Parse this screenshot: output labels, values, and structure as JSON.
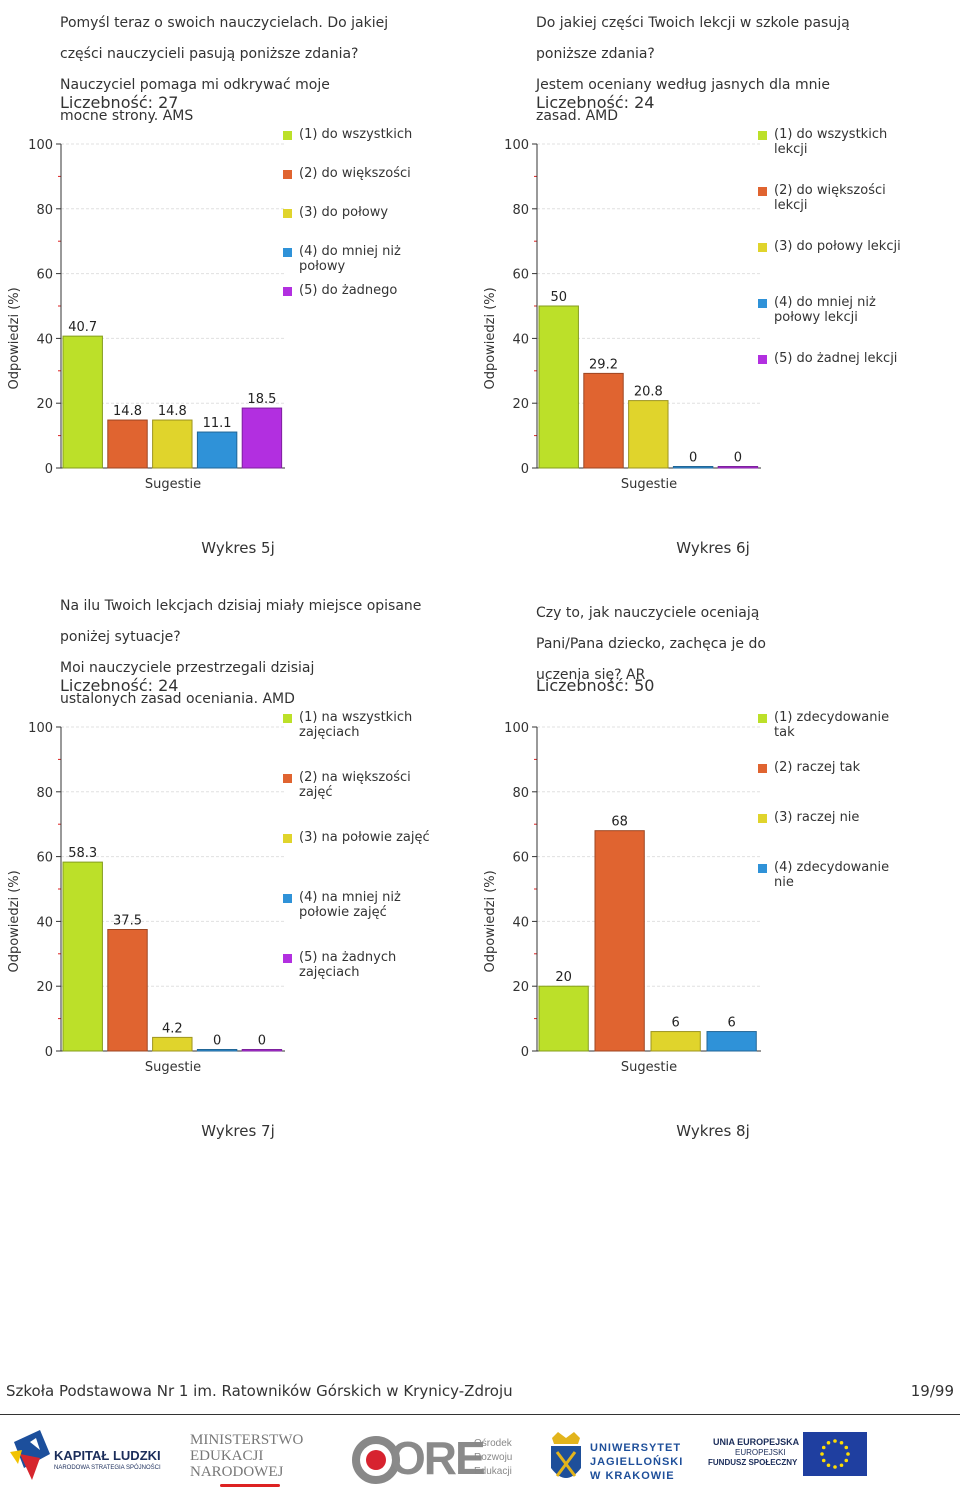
{
  "page": {
    "school": "Szkoła Podstawowa Nr 1 im. Ratowników Górskich w Krynicy-Zdroju",
    "page_number": "19/99"
  },
  "colors": {
    "c1": "#bce029",
    "c2": "#e06430",
    "c3": "#e0d42c",
    "c4": "#2f92d8",
    "c5": "#b22fe0"
  },
  "chart_data": [
    {
      "type": "bar",
      "title": "Pomyśl teraz o swoich nauczycielach. Do jakiej części nauczycieli pasują poniższe zdania?\nNauczyciel pomaga mi odkrywać moje mocne strony. AMS",
      "title_lines": [
        "Pomyśl teraz o swoich nauczycielach. Do jakiej",
        "części nauczycieli pasują poniższe zdania?",
        "Nauczyciel pomaga mi odkrywać moje",
        "mocne strony. AMS"
      ],
      "count_label": "Liczebność:",
      "count": "27",
      "xlabel": "Sugestie",
      "ylabel": "Odpowiedzi (%)",
      "ylim": [
        0,
        100
      ],
      "yticks": [
        "0",
        "20",
        "40",
        "60",
        "80",
        "100"
      ],
      "categories": [
        "(1) do wszystkich",
        "(2) do większości",
        "(3) do połowy",
        "(4) do mniej niż połowy",
        "(5) do żadnego"
      ],
      "values": [
        40.7,
        14.8,
        14.8,
        11.1,
        18.5
      ],
      "value_labels": [
        "40.7",
        "14.8",
        "14.8",
        "11.1",
        "18.5"
      ],
      "caption": "Wykres 5j"
    },
    {
      "type": "bar",
      "title": "Do jakiej części Twoich lekcji w szkole pasują poniższe zdania?\nJestem oceniany według jasnych dla mnie zasad. AMD",
      "title_lines": [
        "Do jakiej części Twoich lekcji w szkole pasują",
        "poniższe zdania?",
        "Jestem oceniany według jasnych dla mnie",
        "zasad. AMD"
      ],
      "count_label": "Liczebność:",
      "count": "24",
      "xlabel": "Sugestie",
      "ylabel": "Odpowiedzi (%)",
      "ylim": [
        0,
        100
      ],
      "yticks": [
        "0",
        "20",
        "40",
        "60",
        "80",
        "100"
      ],
      "categories": [
        "(1) do wszystkich lekcji",
        "(2) do większości lekcji",
        "(3) do połowy lekcji",
        "(4) do mniej niż połowy lekcji",
        "(5) do żadnej lekcji"
      ],
      "values": [
        50,
        29.2,
        20.8,
        0,
        0
      ],
      "value_labels": [
        "50",
        "29.2",
        "20.8",
        "0",
        "0"
      ],
      "caption": "Wykres 6j"
    },
    {
      "type": "bar",
      "title": "Na ilu Twoich lekcjach dzisiaj miały miejsce opisane poniżej sytuacje?\nMoi nauczyciele przestrzegali dzisiaj ustalonych zasad oceniania. AMD",
      "title_lines": [
        "Na ilu Twoich lekcjach dzisiaj miały miejsce opisane",
        "poniżej sytuacje?",
        "Moi nauczyciele przestrzegali dzisiaj",
        "ustalonych zasad oceniania. AMD"
      ],
      "count_label": "Liczebność:",
      "count": "24",
      "xlabel": "Sugestie",
      "ylabel": "Odpowiedzi (%)",
      "ylim": [
        0,
        100
      ],
      "yticks": [
        "0",
        "20",
        "40",
        "60",
        "80",
        "100"
      ],
      "categories": [
        "(1) na wszystkich zajęciach",
        "(2) na większości zajęć",
        "(3) na połowie zajęć",
        "(4) na mniej niż połowie zajęć",
        "(5) na żadnych zajęciach"
      ],
      "values": [
        58.3,
        37.5,
        4.2,
        0,
        0
      ],
      "value_labels": [
        "58.3",
        "37.5",
        "4.2",
        "0",
        "0"
      ],
      "caption": "Wykres 7j"
    },
    {
      "type": "bar",
      "title": "Czy to, jak nauczyciele oceniają Pani/Pana dziecko, zachęca je do uczenia się? AR",
      "title_lines": [
        "Czy to, jak nauczyciele oceniają",
        "Pani/Pana dziecko, zachęca je do",
        "uczenia się? AR"
      ],
      "count_label": "Liczebność:",
      "count": "50",
      "xlabel": "Sugestie",
      "ylabel": "Odpowiedzi (%)",
      "ylim": [
        0,
        100
      ],
      "yticks": [
        "0",
        "20",
        "40",
        "60",
        "80",
        "100"
      ],
      "categories": [
        "(1) zdecydowanie tak",
        "(2) raczej tak",
        "(3) raczej nie",
        "(4) zdecydowanie nie"
      ],
      "values": [
        20,
        68,
        6,
        6
      ],
      "value_labels": [
        "20",
        "68",
        "6",
        "6"
      ],
      "caption": "Wykres 8j"
    }
  ],
  "logos": {
    "kapital": {
      "line1": "KAPITAŁ LUDZKI",
      "line2": "NARODOWA STRATEGIA SPÓJNOŚCI"
    },
    "men": {
      "line1": "MINISTERSTWO",
      "line2": "EDUKACJI",
      "line3": "NARODOWEJ"
    },
    "ore": {
      "mark": "ORE",
      "line1": "Ośrodek",
      "line2": "Rozwoju",
      "line3": "Edukacji"
    },
    "uj": {
      "line1": "UNIWERSYTET",
      "line2": "JAGIELLOŃSKI",
      "line3": "W KRAKOWIE"
    },
    "ue": {
      "line1": "UNIA EUROPEJSKA",
      "line2": "EUROPEJSKI",
      "line3": "FUNDUSZ SPOŁECZNY"
    }
  }
}
